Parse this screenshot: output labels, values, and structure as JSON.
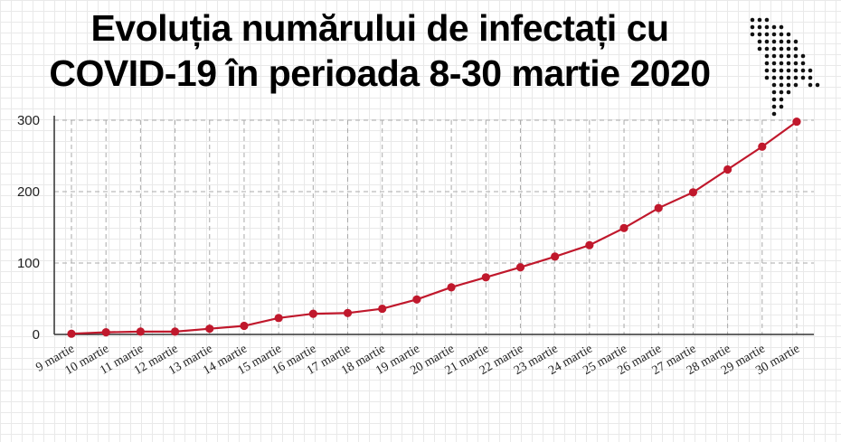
{
  "title_line1": "Evoluția numărului de infectați cu",
  "title_line2": "COVID-19 în perioada 8-30 martie 2020",
  "colors": {
    "line": "#c0182c",
    "axis": "#333333",
    "grid": "#aaaaaa"
  },
  "map_icon": "moldova-map-dotted-icon",
  "chart_data": {
    "type": "line",
    "title": "Evoluția numărului de infectați cu COVID-19 în perioada 8-30 martie 2020",
    "xlabel": "",
    "ylabel": "",
    "ylim": [
      0,
      300
    ],
    "yticks": [
      0,
      100,
      200,
      300
    ],
    "grid": true,
    "categories": [
      "9 martie",
      "10 martie",
      "11 martie",
      "12 martie",
      "13 martie",
      "14 martie",
      "15 martie",
      "16 martie",
      "17 martie",
      "18 martie",
      "19 martie",
      "20 martie",
      "21 martie",
      "22 martie",
      "23 martie",
      "24 martie",
      "25 martie",
      "26 martie",
      "27 martie",
      "28 martie",
      "29 martie",
      "30 martie"
    ],
    "series": [
      {
        "values": [
          1,
          3,
          4,
          4,
          8,
          12,
          23,
          29,
          30,
          36,
          49,
          66,
          80,
          94,
          109,
          125,
          149,
          177,
          199,
          231,
          263,
          298
        ]
      }
    ]
  }
}
